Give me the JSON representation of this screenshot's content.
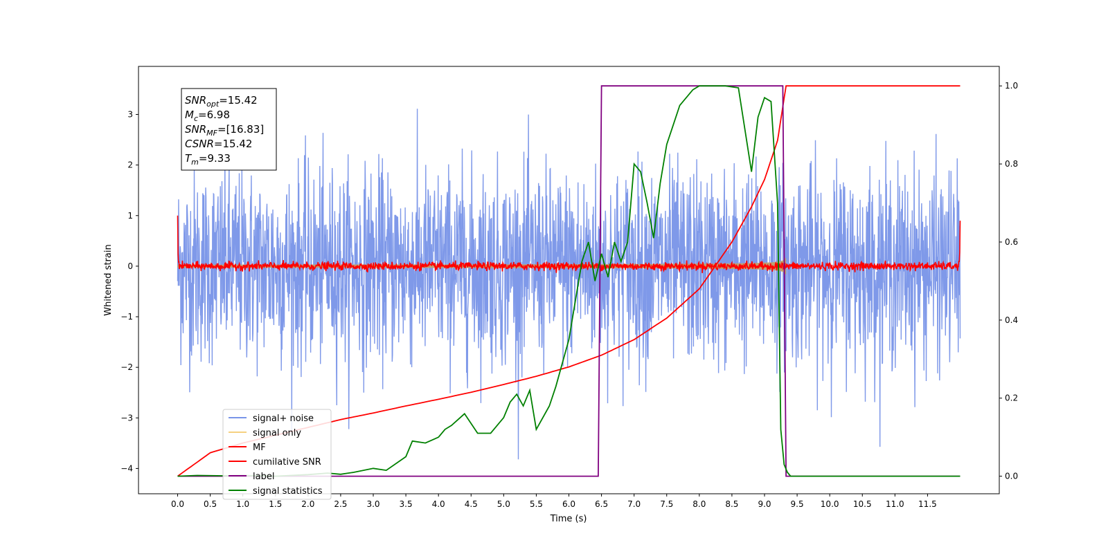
{
  "chart_data": {
    "type": "line",
    "title": "",
    "xlabel": "Time (s)",
    "ylabel_left": "Whitened strain",
    "ylabel_right": "",
    "xlim": [
      -0.6,
      12.6
    ],
    "ylim_left": [
      -4.5,
      3.95
    ],
    "ylim_right": [
      -0.045,
      1.05
    ],
    "x_ticks": [
      "0.0",
      "0.5",
      "1.0",
      "1.5",
      "2.0",
      "2.5",
      "3.0",
      "3.5",
      "4.0",
      "4.5",
      "5.0",
      "5.5",
      "6.0",
      "6.5",
      "7.0",
      "7.5",
      "8.0",
      "8.5",
      "9.0",
      "9.5",
      "10.0",
      "10.5",
      "11.0",
      "11.5"
    ],
    "y_ticks_left": [
      3,
      2,
      1,
      0,
      -1,
      -2,
      -3,
      -4
    ],
    "y_ticks_right": [
      "1.0",
      "0.8",
      "0.6",
      "0.4",
      "0.2",
      "0.0"
    ],
    "grid": false,
    "legend_position": "lower-left",
    "annotation": {
      "lines": [
        {
          "sym": "SNR",
          "sub": "opt",
          "val": "=15.42"
        },
        {
          "sym": "M",
          "sub": "c",
          "val": "=6.98"
        },
        {
          "sym": "SNR",
          "sub": "MF",
          "val": "=[16.83]"
        },
        {
          "sym": "CSNR",
          "sub": "",
          "val": "=15.42"
        },
        {
          "sym": "T",
          "sub": "m",
          "val": "=9.33"
        }
      ]
    },
    "series": [
      {
        "name": "signal+ noise",
        "color": "#7894e8",
        "axis": "left",
        "kind": "noise",
        "x_range": [
          0.0,
          12.0
        ],
        "std": 0.95,
        "min": -4.1,
        "max": 3.6
      },
      {
        "name": "signal only",
        "color": "#f5d080",
        "axis": "left",
        "kind": "chirp",
        "t_merge": 9.33,
        "amp_start": 0.03,
        "amp_end": 0.8
      },
      {
        "name": "MF",
        "color": "#ff0000",
        "axis": "left",
        "kind": "mf",
        "x_range": [
          0.0,
          12.0
        ],
        "noise_std": 0.04,
        "edge_values": [
          1.0,
          0.9
        ]
      },
      {
        "name": "cumilative SNR",
        "color": "#ff0000",
        "axis": "right",
        "x": [
          0.0,
          0.5,
          1.0,
          1.5,
          2.0,
          2.5,
          3.0,
          3.5,
          4.0,
          4.5,
          5.0,
          5.5,
          6.0,
          6.5,
          7.0,
          7.5,
          8.0,
          8.5,
          8.8,
          9.0,
          9.2,
          9.33,
          12.0
        ],
        "y": [
          0.0,
          0.06,
          0.085,
          0.105,
          0.125,
          0.145,
          0.162,
          0.18,
          0.197,
          0.215,
          0.235,
          0.256,
          0.28,
          0.31,
          0.35,
          0.405,
          0.48,
          0.6,
          0.69,
          0.76,
          0.86,
          1.0,
          1.0
        ]
      },
      {
        "name": "label",
        "color": "#800080",
        "axis": "right",
        "x": [
          0.0,
          6.45,
          6.5,
          9.28,
          9.33,
          12.0
        ],
        "y": [
          0.0,
          0.0,
          1.0,
          1.0,
          0.0,
          0.0
        ]
      },
      {
        "name": "signal statistics",
        "color": "#008000",
        "axis": "right",
        "x": [
          0.0,
          0.3,
          0.7,
          1.0,
          1.5,
          2.0,
          2.3,
          2.5,
          2.7,
          3.0,
          3.2,
          3.5,
          3.6,
          3.8,
          4.0,
          4.1,
          4.2,
          4.4,
          4.6,
          4.8,
          5.0,
          5.1,
          5.2,
          5.3,
          5.4,
          5.5,
          5.7,
          5.8,
          5.9,
          6.0,
          6.1,
          6.2,
          6.3,
          6.4,
          6.5,
          6.6,
          6.7,
          6.8,
          6.9,
          7.0,
          7.1,
          7.2,
          7.3,
          7.4,
          7.5,
          7.6,
          7.7,
          7.8,
          7.9,
          8.0,
          8.2,
          8.4,
          8.6,
          8.8,
          8.9,
          9.0,
          9.1,
          9.2,
          9.25,
          9.3,
          9.35,
          9.4,
          12.0
        ],
        "y": [
          0.0,
          0.002,
          0.001,
          0.002,
          0.0,
          0.004,
          0.008,
          0.005,
          0.01,
          0.02,
          0.015,
          0.05,
          0.09,
          0.085,
          0.1,
          0.12,
          0.13,
          0.16,
          0.11,
          0.11,
          0.15,
          0.19,
          0.21,
          0.18,
          0.22,
          0.12,
          0.18,
          0.23,
          0.29,
          0.35,
          0.45,
          0.55,
          0.6,
          0.5,
          0.57,
          0.51,
          0.6,
          0.55,
          0.6,
          0.8,
          0.78,
          0.7,
          0.61,
          0.75,
          0.85,
          0.9,
          0.95,
          0.97,
          0.99,
          1.0,
          1.0,
          1.0,
          0.995,
          0.78,
          0.92,
          0.97,
          0.96,
          0.7,
          0.12,
          0.03,
          0.01,
          0.0,
          0.0
        ]
      }
    ]
  }
}
